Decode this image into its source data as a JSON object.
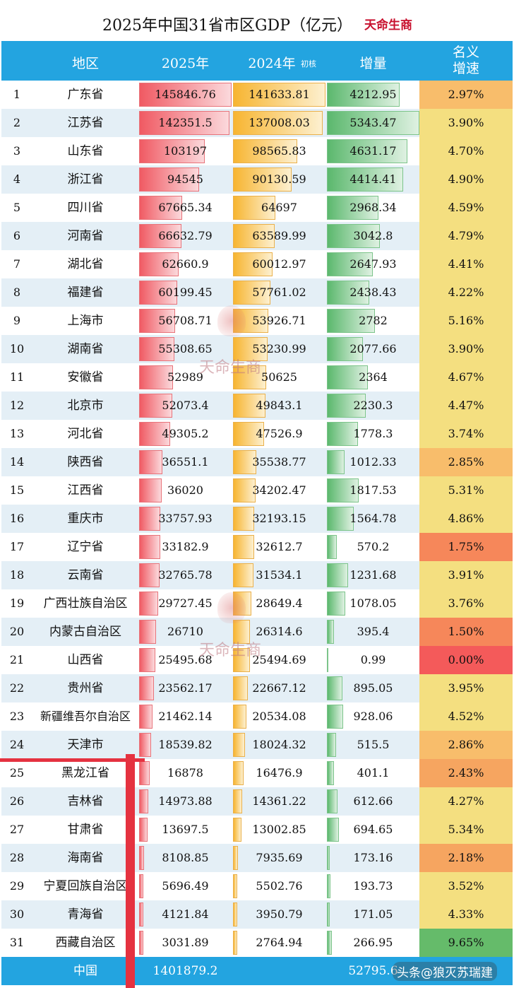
{
  "title": "2025年中国31省市区GDP（亿元）",
  "brand": "天命生商",
  "watermark": "天命生商",
  "source_tag": "头条@狼灭苏瑞建",
  "headers": {
    "region": "地区",
    "y2025": "2025年",
    "y2024": "2024年",
    "y2024_note": "初核",
    "delta": "增量",
    "growth": "名义\n增速"
  },
  "chart_data": {
    "type": "table",
    "columns": [
      "地区",
      "2025年",
      "2024年 初核",
      "增量",
      "名义增速"
    ],
    "rows": [
      {
        "rank": "1",
        "name": "广东省",
        "y2025": "145846.76",
        "y2024": "141633.81",
        "delta": "4212.95",
        "growth": "2.97%"
      },
      {
        "rank": "2",
        "name": "江苏省",
        "y2025": "142351.5",
        "y2024": "137008.03",
        "delta": "5343.47",
        "growth": "3.90%"
      },
      {
        "rank": "3",
        "name": "山东省",
        "y2025": "103197",
        "y2024": "98565.83",
        "delta": "4631.17",
        "growth": "4.70%"
      },
      {
        "rank": "4",
        "name": "浙江省",
        "y2025": "94545",
        "y2024": "90130.59",
        "delta": "4414.41",
        "growth": "4.90%"
      },
      {
        "rank": "5",
        "name": "四川省",
        "y2025": "67665.34",
        "y2024": "64697",
        "delta": "2968.34",
        "growth": "4.59%"
      },
      {
        "rank": "6",
        "name": "河南省",
        "y2025": "66632.79",
        "y2024": "63589.99",
        "delta": "3042.8",
        "growth": "4.79%"
      },
      {
        "rank": "7",
        "name": "湖北省",
        "y2025": "62660.9",
        "y2024": "60012.97",
        "delta": "2647.93",
        "growth": "4.41%"
      },
      {
        "rank": "8",
        "name": "福建省",
        "y2025": "60199.45",
        "y2024": "57761.02",
        "delta": "2438.43",
        "growth": "4.22%"
      },
      {
        "rank": "9",
        "name": "上海市",
        "y2025": "56708.71",
        "y2024": "53926.71",
        "delta": "2782",
        "growth": "5.16%"
      },
      {
        "rank": "10",
        "name": "湖南省",
        "y2025": "55308.65",
        "y2024": "53230.99",
        "delta": "2077.66",
        "growth": "3.90%"
      },
      {
        "rank": "11",
        "name": "安徽省",
        "y2025": "52989",
        "y2024": "50625",
        "delta": "2364",
        "growth": "4.67%"
      },
      {
        "rank": "12",
        "name": "北京市",
        "y2025": "52073.4",
        "y2024": "49843.1",
        "delta": "2230.3",
        "growth": "4.47%"
      },
      {
        "rank": "13",
        "name": "河北省",
        "y2025": "49305.2",
        "y2024": "47526.9",
        "delta": "1778.3",
        "growth": "3.74%"
      },
      {
        "rank": "14",
        "name": "陕西省",
        "y2025": "36551.1",
        "y2024": "35538.77",
        "delta": "1012.33",
        "growth": "2.85%"
      },
      {
        "rank": "15",
        "name": "江西省",
        "y2025": "36020",
        "y2024": "34202.47",
        "delta": "1817.53",
        "growth": "5.31%"
      },
      {
        "rank": "16",
        "name": "重庆市",
        "y2025": "33757.93",
        "y2024": "32193.15",
        "delta": "1564.78",
        "growth": "4.86%"
      },
      {
        "rank": "17",
        "name": "辽宁省",
        "y2025": "33182.9",
        "y2024": "32612.7",
        "delta": "570.2",
        "growth": "1.75%"
      },
      {
        "rank": "18",
        "name": "云南省",
        "y2025": "32765.78",
        "y2024": "31534.1",
        "delta": "1231.68",
        "growth": "3.91%"
      },
      {
        "rank": "19",
        "name": "广西壮族自治区",
        "y2025": "29727.45",
        "y2024": "28649.4",
        "delta": "1078.05",
        "growth": "3.76%"
      },
      {
        "rank": "20",
        "name": "内蒙古自治区",
        "y2025": "26710",
        "y2024": "26314.6",
        "delta": "395.4",
        "growth": "1.50%"
      },
      {
        "rank": "21",
        "name": "山西省",
        "y2025": "25495.68",
        "y2024": "25494.69",
        "delta": "0.99",
        "growth": "0.00%"
      },
      {
        "rank": "22",
        "name": "贵州省",
        "y2025": "23562.17",
        "y2024": "22667.12",
        "delta": "895.05",
        "growth": "3.95%"
      },
      {
        "rank": "23",
        "name": "新疆维吾尔自治区",
        "y2025": "21462.14",
        "y2024": "20534.08",
        "delta": "928.06",
        "growth": "4.52%"
      },
      {
        "rank": "24",
        "name": "天津市",
        "y2025": "18539.82",
        "y2024": "18024.32",
        "delta": "515.5",
        "growth": "2.86%"
      },
      {
        "rank": "25",
        "name": "黑龙江省",
        "y2025": "16878",
        "y2024": "16476.9",
        "delta": "401.1",
        "growth": "2.43%"
      },
      {
        "rank": "26",
        "name": "吉林省",
        "y2025": "14973.88",
        "y2024": "14361.22",
        "delta": "612.66",
        "growth": "4.27%"
      },
      {
        "rank": "27",
        "name": "甘肃省",
        "y2025": "13697.5",
        "y2024": "13002.85",
        "delta": "694.65",
        "growth": "5.34%"
      },
      {
        "rank": "28",
        "name": "海南省",
        "y2025": "8108.85",
        "y2024": "7935.69",
        "delta": "173.16",
        "growth": "2.18%"
      },
      {
        "rank": "29",
        "name": "宁夏回族自治区",
        "y2025": "5696.49",
        "y2024": "5502.76",
        "delta": "193.73",
        "growth": "3.52%"
      },
      {
        "rank": "30",
        "name": "青海省",
        "y2025": "4121.84",
        "y2024": "3950.79",
        "delta": "171.05",
        "growth": "4.33%"
      },
      {
        "rank": "31",
        "name": "西藏自治区",
        "y2025": "3031.89",
        "y2024": "2764.94",
        "delta": "266.95",
        "growth": "9.65%"
      }
    ],
    "total": {
      "name": "中国",
      "y2025": "1401879.2",
      "delta": "52795.6"
    }
  }
}
